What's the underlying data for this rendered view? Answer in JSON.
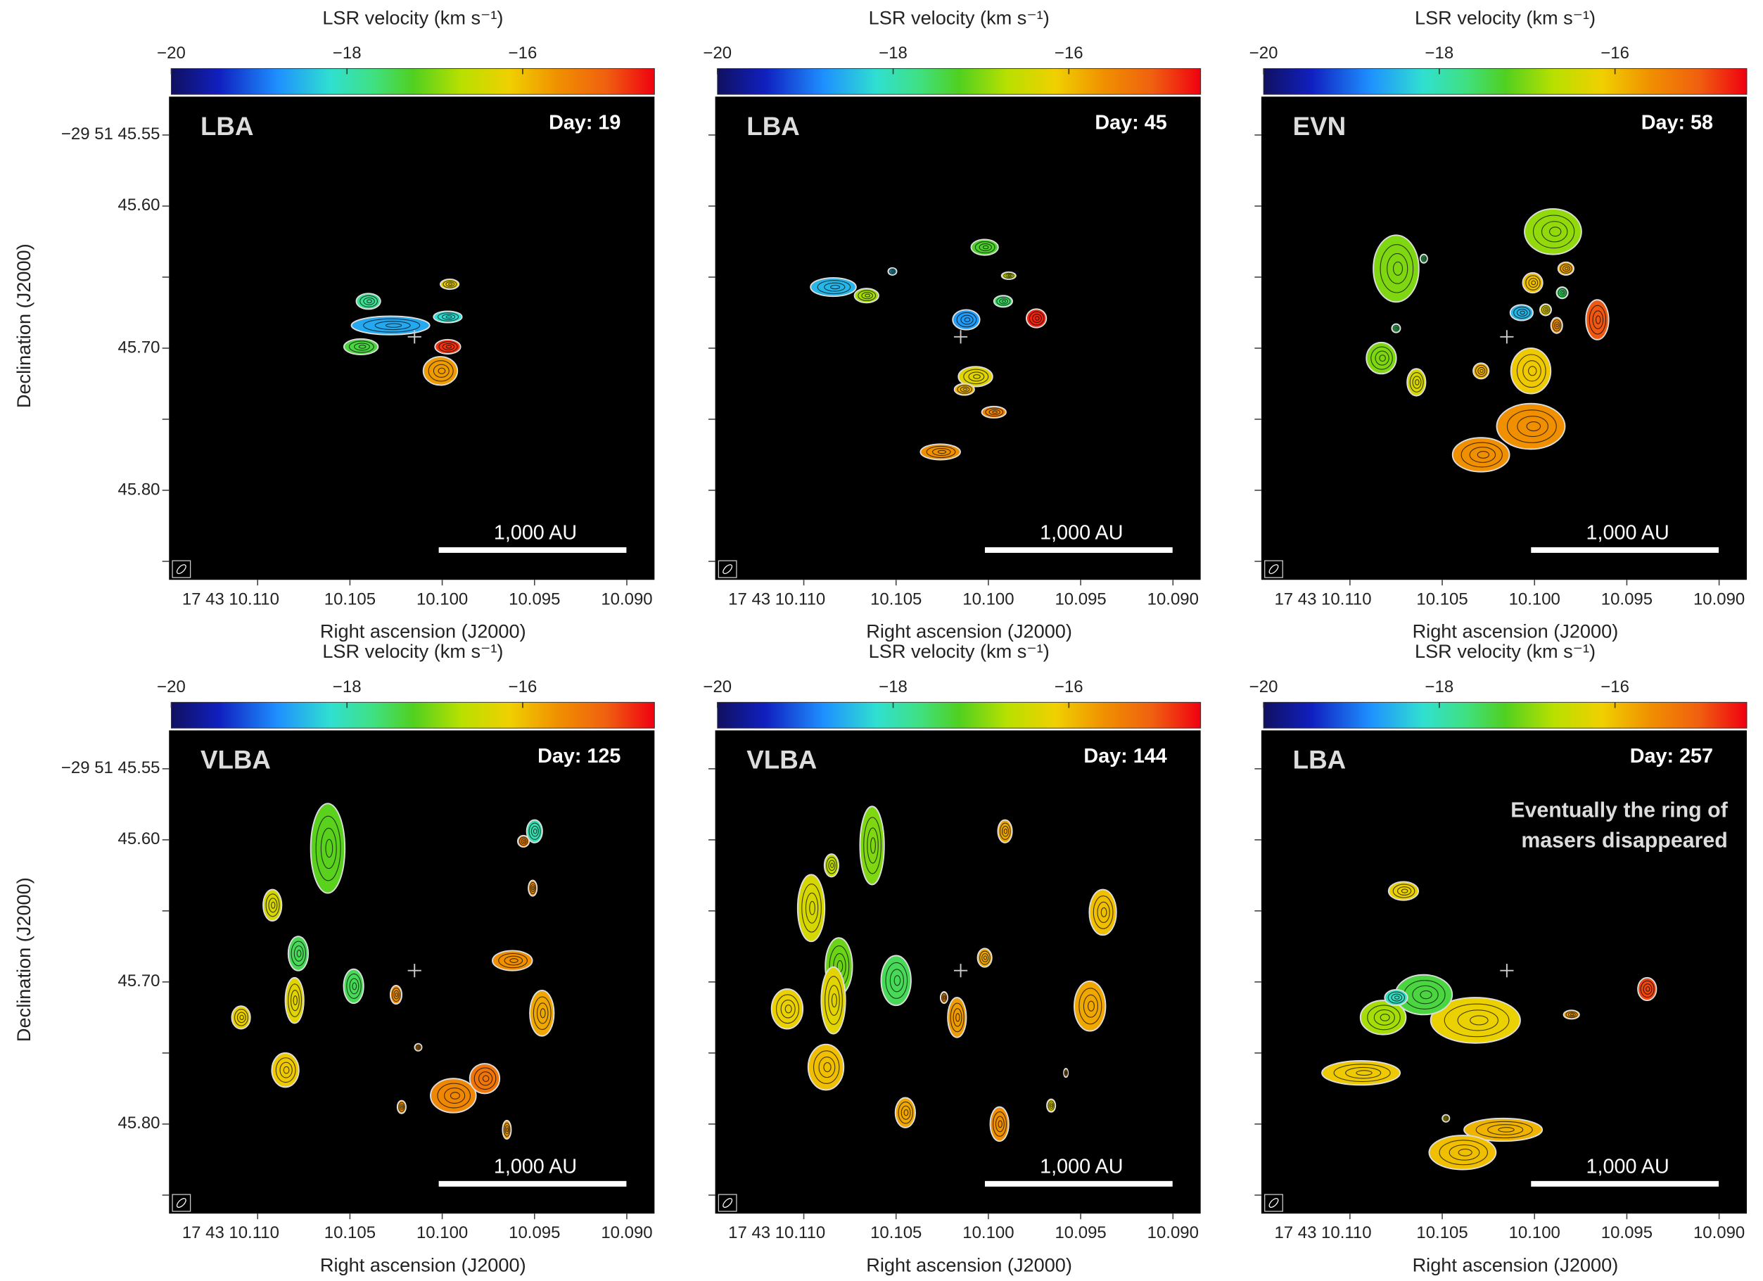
{
  "chart_data": [
    {
      "type": "maser-map",
      "colorbar_label": "LSR velocity (km s⁻¹)",
      "clim": [
        -20,
        -14.5
      ],
      "cticks": [
        {
          "value": -20,
          "label": "−20"
        },
        {
          "value": -18,
          "label": "−18"
        },
        {
          "value": -16,
          "label": "−16"
        }
      ],
      "array": "LBA",
      "day": "Day: 19",
      "scale_bar": "1,000 AU",
      "xlabel": "Right ascension (J2000)",
      "ylabel": "Declination (J2000)",
      "xlim": [
        10.1148,
        10.0885
      ],
      "ylim": [
        45.523,
        45.863
      ],
      "xticks": [
        {
          "value": 10.11,
          "label": "17 43 10.110"
        },
        10.105,
        {
          "value": 10.1,
          "label": "10.100"
        },
        10.095,
        {
          "value": 10.09,
          "label": "10.090"
        }
      ],
      "yticks": [
        {
          "value": 45.55,
          "label": "−29 51 45.55"
        },
        {
          "value": 45.6,
          "label": "45.60"
        },
        45.65,
        {
          "value": 45.7,
          "label": "45.70"
        },
        45.75,
        {
          "value": 45.8,
          "label": "45.80"
        },
        45.85
      ],
      "reference": {
        "ra": 10.1015,
        "dec": 45.692
      },
      "spots": {
        "ra": [
          10.104,
          10.1028,
          10.1044,
          10.0997,
          10.0996,
          10.0997,
          10.1001
        ],
        "dec": [
          45.667,
          45.684,
          45.699,
          45.678,
          45.655,
          45.699,
          45.716
        ],
        "velocity": [
          -17.8,
          -18.6,
          -17.4,
          -18.2,
          -16.2,
          -14.8,
          -15.7
        ],
        "width": [
          0.017,
          0.055,
          0.024,
          0.02,
          0.013,
          0.018,
          0.024
        ],
        "height": [
          0.011,
          0.013,
          0.011,
          0.008,
          0.007,
          0.01,
          0.02
        ]
      }
    },
    {
      "type": "maser-map",
      "colorbar_label": "LSR velocity (km s⁻¹)",
      "clim": [
        -20,
        -14.5
      ],
      "cticks": [
        {
          "value": -20,
          "label": "−20"
        },
        {
          "value": -18,
          "label": "−18"
        },
        {
          "value": -16,
          "label": "−16"
        }
      ],
      "array": "LBA",
      "day": "Day: 45",
      "scale_bar": "1,000 AU",
      "xlabel": "Right ascension (J2000)",
      "xlim": [
        10.1148,
        10.0885
      ],
      "ylim": [
        45.523,
        45.863
      ],
      "xticks": [
        {
          "value": 10.11,
          "label": "17 43 10.110"
        },
        10.105,
        {
          "value": 10.1,
          "label": "10.100"
        },
        10.095,
        {
          "value": 10.09,
          "label": "10.090"
        }
      ],
      "yticks": [
        45.55,
        45.6,
        45.65,
        45.7,
        45.75,
        45.8,
        45.85
      ],
      "reference": {
        "ra": 10.1015,
        "dec": 45.692
      },
      "spots": {
        "ra": [
          10.1084,
          10.1066,
          10.1052,
          10.1002,
          10.0989,
          10.0992,
          10.0974,
          10.1012,
          10.1007,
          10.1013,
          10.0997,
          10.1026
        ],
        "dec": [
          45.657,
          45.663,
          45.646,
          45.629,
          45.649,
          45.667,
          45.679,
          45.68,
          45.72,
          45.729,
          45.745,
          45.773
        ],
        "velocity": [
          -18.5,
          -16.8,
          -18.4,
          -17.3,
          -16.5,
          -17.6,
          -14.7,
          -18.7,
          -16.3,
          -15.9,
          -15.5,
          -15.6
        ],
        "width": [
          0.032,
          0.017,
          0.006,
          0.019,
          0.01,
          0.013,
          0.014,
          0.019,
          0.024,
          0.014,
          0.017,
          0.028
        ],
        "height": [
          0.013,
          0.01,
          0.005,
          0.011,
          0.005,
          0.008,
          0.013,
          0.014,
          0.014,
          0.008,
          0.008,
          0.011
        ]
      }
    },
    {
      "type": "maser-map",
      "colorbar_label": "LSR velocity (km s⁻¹)",
      "clim": [
        -20,
        -14.5
      ],
      "cticks": [
        {
          "value": -20,
          "label": "−20"
        },
        {
          "value": -18,
          "label": "−18"
        },
        {
          "value": -16,
          "label": "−16"
        }
      ],
      "array": "EVN",
      "day": "Day: 58",
      "scale_bar": "1,000 AU",
      "xlabel": "Right ascension (J2000)",
      "xlim": [
        10.1148,
        10.0885
      ],
      "ylim": [
        45.523,
        45.863
      ],
      "xticks": [
        {
          "value": 10.11,
          "label": "17 43 10.110"
        },
        10.105,
        {
          "value": 10.1,
          "label": "10.100"
        },
        10.095,
        {
          "value": 10.09,
          "label": "10.090"
        }
      ],
      "yticks": [
        45.55,
        45.6,
        45.65,
        45.7,
        45.75,
        45.8,
        45.85
      ],
      "reference": {
        "ra": 10.1015,
        "dec": 45.692
      },
      "spots": {
        "ra": [
          10.1075,
          10.106,
          10.1075,
          10.1083,
          10.1064,
          10.099,
          10.1001,
          10.0983,
          10.0985,
          10.1007,
          10.0994,
          10.0988,
          10.0966,
          10.1029,
          10.1002,
          10.1002,
          10.1029
        ],
        "dec": [
          45.644,
          45.637,
          45.686,
          45.707,
          45.724,
          45.618,
          45.654,
          45.644,
          45.661,
          45.675,
          45.673,
          45.684,
          45.68,
          45.716,
          45.716,
          45.755,
          45.775
        ],
        "velocity": [
          -17.0,
          -17.6,
          -17.6,
          -17.0,
          -16.4,
          -16.9,
          -16.0,
          -15.8,
          -17.6,
          -18.5,
          -16.3,
          -15.6,
          -15.0,
          -15.9,
          -16.1,
          -15.6,
          -15.6
        ],
        "width": [
          0.032,
          0.005,
          0.006,
          0.021,
          0.013,
          0.04,
          0.014,
          0.011,
          0.008,
          0.016,
          0.008,
          0.008,
          0.016,
          0.011,
          0.028,
          0.048,
          0.04
        ],
        "height": [
          0.047,
          0.006,
          0.006,
          0.022,
          0.019,
          0.032,
          0.014,
          0.009,
          0.008,
          0.011,
          0.008,
          0.011,
          0.028,
          0.011,
          0.032,
          0.032,
          0.024
        ]
      }
    },
    {
      "type": "maser-map",
      "colorbar_label": "LSR velocity (km s⁻¹)",
      "clim": [
        -20,
        -14.5
      ],
      "cticks": [
        {
          "value": -20,
          "label": "−20"
        },
        {
          "value": -18,
          "label": "−18"
        },
        {
          "value": -16,
          "label": "−16"
        }
      ],
      "array": "VLBA",
      "day": "Day: 125",
      "scale_bar": "1,000 AU",
      "xlabel": "Right ascension (J2000)",
      "ylabel": "Declination (J2000)",
      "xlim": [
        10.1148,
        10.0885
      ],
      "ylim": [
        45.523,
        45.863
      ],
      "xticks": [
        {
          "value": 10.11,
          "label": "17 43 10.110"
        },
        10.105,
        {
          "value": 10.1,
          "label": "10.100"
        },
        10.095,
        {
          "value": 10.09,
          "label": "10.090"
        }
      ],
      "yticks": [
        {
          "value": 45.55,
          "label": "−29 51 45.55"
        },
        {
          "value": 45.6,
          "label": "45.60"
        },
        45.65,
        {
          "value": 45.7,
          "label": "45.70"
        },
        45.75,
        {
          "value": 45.8,
          "label": "45.80"
        },
        45.85
      ],
      "reference": {
        "ra": 10.1015,
        "dec": 45.692
      },
      "spots": {
        "ra": [
          10.1062,
          10.1092,
          10.1078,
          10.108,
          10.1048,
          10.1109,
          10.1085,
          10.1025,
          10.0994,
          10.0977,
          10.0962,
          10.0946,
          10.095,
          10.0956,
          10.0951,
          10.0965,
          10.1013,
          10.1022
        ],
        "dec": [
          45.606,
          45.646,
          45.68,
          45.713,
          45.703,
          45.725,
          45.762,
          45.709,
          45.78,
          45.768,
          45.685,
          45.722,
          45.594,
          45.601,
          45.634,
          45.804,
          45.746,
          45.788
        ],
        "velocity": [
          -17.2,
          -16.4,
          -17.5,
          -16.3,
          -17.5,
          -16.2,
          -16.1,
          -15.6,
          -15.5,
          -15.3,
          -15.6,
          -15.8,
          -18.0,
          -15.5,
          -15.6,
          -15.7,
          -15.6,
          -15.7
        ],
        "width": [
          0.024,
          0.013,
          0.014,
          0.013,
          0.014,
          0.013,
          0.019,
          0.008,
          0.032,
          0.021,
          0.028,
          0.017,
          0.011,
          0.008,
          0.006,
          0.006,
          0.005,
          0.006
        ],
        "height": [
          0.063,
          0.022,
          0.024,
          0.032,
          0.024,
          0.016,
          0.024,
          0.013,
          0.024,
          0.021,
          0.014,
          0.032,
          0.016,
          0.008,
          0.011,
          0.013,
          0.005,
          0.009
        ]
      }
    },
    {
      "type": "maser-map",
      "colorbar_label": "LSR velocity (km s⁻¹)",
      "clim": [
        -20,
        -14.5
      ],
      "cticks": [
        {
          "value": -20,
          "label": "−20"
        },
        {
          "value": -18,
          "label": "−18"
        },
        {
          "value": -16,
          "label": "−16"
        }
      ],
      "array": "VLBA",
      "day": "Day: 144",
      "scale_bar": "1,000 AU",
      "xlabel": "Right ascension (J2000)",
      "xlim": [
        10.1148,
        10.0885
      ],
      "ylim": [
        45.523,
        45.863
      ],
      "xticks": [
        {
          "value": 10.11,
          "label": "17 43 10.110"
        },
        10.105,
        {
          "value": 10.1,
          "label": "10.100"
        },
        10.095,
        {
          "value": 10.09,
          "label": "10.090"
        }
      ],
      "yticks": [
        45.55,
        45.6,
        45.65,
        45.7,
        45.75,
        45.8,
        45.85
      ],
      "reference": {
        "ra": 10.1015,
        "dec": 45.692
      },
      "spots": {
        "ra": [
          10.1063,
          10.1085,
          10.1096,
          10.1081,
          10.1084,
          10.1109,
          10.1088,
          10.105,
          10.1017,
          10.1024,
          10.1002,
          10.0991,
          10.0938,
          10.0945,
          10.1045,
          10.0994,
          10.0966,
          10.0958
        ],
        "dec": [
          45.604,
          45.618,
          45.648,
          45.689,
          45.713,
          45.719,
          45.76,
          45.699,
          45.725,
          45.711,
          45.683,
          45.594,
          45.651,
          45.717,
          45.792,
          45.8,
          45.787,
          45.764
        ],
        "velocity": [
          -17.0,
          -16.6,
          -16.4,
          -17.1,
          -16.3,
          -16.2,
          -16.0,
          -17.5,
          -15.7,
          -15.6,
          -15.8,
          -15.8,
          -16.0,
          -15.8,
          -15.8,
          -15.6,
          -16.3,
          -15.6
        ],
        "width": [
          0.017,
          0.01,
          0.019,
          0.019,
          0.017,
          0.022,
          0.025,
          0.021,
          0.013,
          0.005,
          0.01,
          0.01,
          0.019,
          0.022,
          0.014,
          0.013,
          0.006,
          0.003
        ],
        "height": [
          0.055,
          0.016,
          0.047,
          0.04,
          0.047,
          0.028,
          0.032,
          0.035,
          0.028,
          0.008,
          0.013,
          0.016,
          0.032,
          0.035,
          0.021,
          0.024,
          0.009,
          0.006
        ]
      }
    },
    {
      "type": "maser-map",
      "colorbar_label": "LSR velocity (km s⁻¹)",
      "clim": [
        -20,
        -14.5
      ],
      "cticks": [
        {
          "value": -20,
          "label": "−20"
        },
        {
          "value": -18,
          "label": "−18"
        },
        {
          "value": -16,
          "label": "−16"
        }
      ],
      "array": "LBA",
      "day": "Day: 257",
      "scale_bar": "1,000 AU",
      "annotation": [
        "Eventually the ring of",
        "masers disappeared"
      ],
      "xlabel": "Right ascension (J2000)",
      "xlim": [
        10.1148,
        10.0885
      ],
      "ylim": [
        45.523,
        45.863
      ],
      "xticks": [
        {
          "value": 10.11,
          "label": "17 43 10.110"
        },
        10.105,
        {
          "value": 10.1,
          "label": "10.100"
        },
        10.095,
        {
          "value": 10.09,
          "label": "10.090"
        }
      ],
      "yticks": [
        45.55,
        45.6,
        45.65,
        45.7,
        45.75,
        45.8,
        45.85
      ],
      "reference": {
        "ra": 10.1015,
        "dec": 45.692
      },
      "spots": {
        "ra": [
          10.1071,
          10.1082,
          10.1032,
          10.106,
          10.1075,
          10.1094,
          10.1017,
          10.1039,
          10.098,
          10.0939,
          10.1048
        ],
        "dec": [
          45.636,
          45.725,
          45.727,
          45.709,
          45.711,
          45.764,
          45.804,
          45.82,
          45.723,
          45.705,
          45.796
        ],
        "velocity": [
          -16.2,
          -16.8,
          -16.2,
          -17.4,
          -18.1,
          -16.1,
          -15.9,
          -16.0,
          -15.7,
          -14.9,
          -16.3
        ],
        "width": [
          0.021,
          0.032,
          0.063,
          0.04,
          0.016,
          0.055,
          0.055,
          0.047,
          0.011,
          0.013,
          0.005
        ],
        "height": [
          0.013,
          0.024,
          0.032,
          0.028,
          0.011,
          0.017,
          0.016,
          0.024,
          0.006,
          0.016,
          0.005
        ]
      }
    }
  ]
}
